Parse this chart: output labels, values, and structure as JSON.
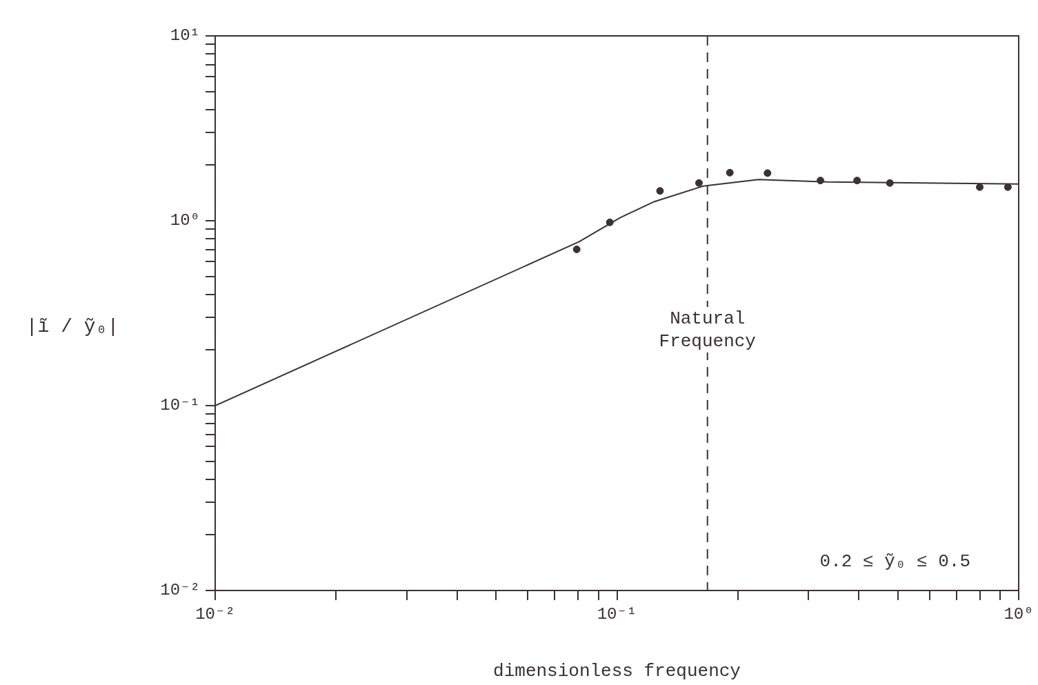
{
  "chart_data": {
    "type": "line",
    "xlabel": "dimensionless frequency",
    "ylabel": "|ĩ / ỹ₀|",
    "log": "xy",
    "grid": false,
    "legend": false,
    "line_style": "solid",
    "xlim": [
      0.01,
      1
    ],
    "ylim": [
      0.01,
      10
    ],
    "xticks": [
      {
        "value": 0.01,
        "label": "10⁻²"
      },
      {
        "value": 0.02,
        "label": null
      },
      {
        "value": 0.03,
        "label": null
      },
      {
        "value": 0.04,
        "label": null
      },
      {
        "value": 0.05,
        "label": null
      },
      {
        "value": 0.06,
        "label": null
      },
      {
        "value": 0.07,
        "label": null
      },
      {
        "value": 0.08,
        "label": null
      },
      {
        "value": 0.09,
        "label": null
      },
      {
        "value": 0.1,
        "label": "10⁻¹"
      },
      {
        "value": 0.2,
        "label": null
      },
      {
        "value": 0.3,
        "label": null
      },
      {
        "value": 0.4,
        "label": null
      },
      {
        "value": 0.5,
        "label": null
      },
      {
        "value": 0.6,
        "label": null
      },
      {
        "value": 0.7,
        "label": null
      },
      {
        "value": 0.8,
        "label": null
      },
      {
        "value": 0.9,
        "label": null
      },
      {
        "value": 1,
        "label": "10⁰"
      }
    ],
    "yticks": [
      {
        "value": 0.01,
        "label": "10⁻²"
      },
      {
        "value": 0.02,
        "label": null
      },
      {
        "value": 0.03,
        "label": null
      },
      {
        "value": 0.04,
        "label": null
      },
      {
        "value": 0.05,
        "label": null
      },
      {
        "value": 0.06,
        "label": null
      },
      {
        "value": 0.07,
        "label": null
      },
      {
        "value": 0.08,
        "label": null
      },
      {
        "value": 0.09,
        "label": null
      },
      {
        "value": 0.1,
        "label": "10⁻¹"
      },
      {
        "value": 0.2,
        "label": null
      },
      {
        "value": 0.3,
        "label": null
      },
      {
        "value": 0.4,
        "label": null
      },
      {
        "value": 0.5,
        "label": null
      },
      {
        "value": 0.6,
        "label": null
      },
      {
        "value": 0.7,
        "label": null
      },
      {
        "value": 0.8,
        "label": null
      },
      {
        "value": 0.9,
        "label": null
      },
      {
        "value": 1,
        "label": "10⁰"
      },
      {
        "value": 2,
        "label": null
      },
      {
        "value": 3,
        "label": null
      },
      {
        "value": 4,
        "label": null
      },
      {
        "value": 5,
        "label": null
      },
      {
        "value": 6,
        "label": null
      },
      {
        "value": 7,
        "label": null
      },
      {
        "value": 8,
        "label": null
      },
      {
        "value": 9,
        "label": null
      },
      {
        "value": 10,
        "label": "10¹"
      }
    ],
    "series": [
      {
        "marker": "none",
        "color": "#3b3033",
        "x": [
          0.01,
          0.0805,
          0.102,
          0.124,
          0.164,
          0.225,
          0.334,
          1
        ],
        "values": [
          0.1,
          0.77,
          1.04,
          1.27,
          1.54,
          1.67,
          1.62,
          1.58
        ]
      },
      {
        "type": "scatter",
        "marker": "circle",
        "color": "#3b3033",
        "x": [
          0.0794,
          0.096,
          0.128,
          0.16,
          0.191,
          0.237,
          0.321,
          0.396,
          0.478,
          0.8,
          0.94
        ],
        "values": [
          0.7,
          0.98,
          1.45,
          1.6,
          1.82,
          1.81,
          1.65,
          1.65,
          1.6,
          1.52,
          1.52
        ]
      }
    ],
    "ref_lines": [
      {
        "axis": "x",
        "value": 0.168,
        "label": "Natural Frequency",
        "line_style": "dashed",
        "color": "#3b3033"
      }
    ],
    "annotations": [
      "0.2 ≤ ỹ₀ ≤ 0.5"
    ]
  }
}
